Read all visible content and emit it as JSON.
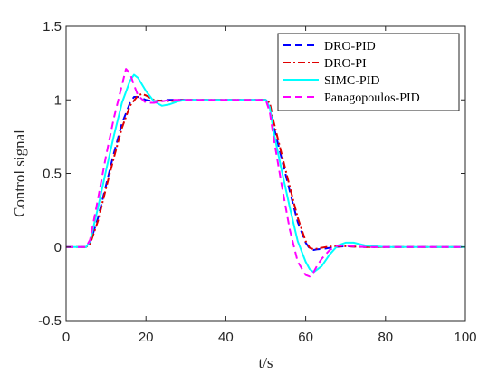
{
  "chart_data": {
    "type": "line",
    "title": "",
    "xlabel": "t/s",
    "ylabel": "Control signal",
    "xlim": [
      0,
      100
    ],
    "ylim": [
      -0.5,
      1.5
    ],
    "xticks": [
      0,
      20,
      40,
      60,
      80,
      100
    ],
    "yticks": [
      -0.5,
      0,
      0.5,
      1,
      1.5
    ],
    "xtick_labels": [
      "0",
      "20",
      "40",
      "60",
      "80",
      "100"
    ],
    "ytick_labels": [
      "-0.5",
      "0",
      "0.5",
      "1",
      "1.5"
    ],
    "grid": false,
    "legend_position": "top-right",
    "series": [
      {
        "name": "DRO-PID",
        "color": "#0000FF",
        "style": "dashed",
        "x": [
          0,
          5,
          6,
          8,
          10,
          12,
          14,
          16,
          17,
          18,
          20,
          22,
          25,
          30,
          40,
          50,
          51,
          52,
          54,
          56,
          58,
          60,
          61,
          62,
          63,
          65,
          67,
          70,
          75,
          80,
          100
        ],
        "y": [
          0,
          0,
          0.03,
          0.2,
          0.42,
          0.64,
          0.84,
          0.98,
          1.02,
          1.02,
          1.0,
          0.99,
          1.0,
          1.0,
          1.0,
          1.0,
          0.97,
          0.82,
          0.6,
          0.38,
          0.17,
          0.03,
          -0.01,
          -0.02,
          -0.015,
          -0.01,
          0.0,
          0.005,
          0.0,
          0.0,
          0.0
        ]
      },
      {
        "name": "DRO-PI",
        "color": "#E00000",
        "style": "dashdot",
        "x": [
          0,
          5,
          6,
          8,
          10,
          12,
          14,
          16,
          18,
          19,
          20,
          22,
          25,
          30,
          40,
          50,
          51,
          52,
          54,
          56,
          58,
          60,
          61,
          62,
          63,
          65,
          67,
          70,
          75,
          80,
          100
        ],
        "y": [
          0,
          0,
          0.02,
          0.18,
          0.4,
          0.61,
          0.81,
          0.96,
          1.03,
          1.04,
          1.03,
          1.0,
          0.99,
          1.0,
          1.0,
          1.0,
          0.98,
          0.85,
          0.63,
          0.41,
          0.2,
          0.04,
          -0.005,
          -0.015,
          -0.01,
          0.0,
          0.005,
          0.005,
          0.0,
          0.0,
          0.0
        ]
      },
      {
        "name": "SIMC-PID",
        "color": "#00FFFF",
        "style": "solid",
        "x": [
          0,
          5,
          6,
          8,
          10,
          12,
          14,
          16,
          17,
          18,
          20,
          22,
          24,
          26,
          28,
          30,
          35,
          40,
          50,
          51,
          52,
          54,
          56,
          58,
          60,
          61,
          62,
          64,
          66,
          68,
          70,
          72,
          75,
          80,
          100
        ],
        "y": [
          0,
          0,
          0.04,
          0.27,
          0.52,
          0.76,
          0.98,
          1.13,
          1.17,
          1.15,
          1.06,
          0.99,
          0.96,
          0.97,
          0.99,
          1.0,
          1.0,
          1.0,
          1.0,
          0.95,
          0.78,
          0.52,
          0.27,
          0.04,
          -0.1,
          -0.15,
          -0.17,
          -0.13,
          -0.05,
          0.01,
          0.03,
          0.03,
          0.01,
          0.0,
          0.0
        ]
      },
      {
        "name": "Panagopoulos-PID",
        "color": "#FF00FF",
        "style": "dashed",
        "x": [
          0,
          5,
          6,
          8,
          10,
          12,
          14,
          15,
          16,
          17,
          18,
          20,
          22,
          24,
          26,
          30,
          40,
          50,
          51,
          52,
          54,
          56,
          58,
          60,
          61,
          62,
          63,
          64,
          66,
          68,
          70,
          75,
          80,
          100
        ],
        "y": [
          0,
          0,
          0.05,
          0.33,
          0.62,
          0.88,
          1.1,
          1.21,
          1.18,
          1.1,
          1.03,
          0.98,
          0.98,
          0.99,
          1.0,
          1.0,
          1.0,
          1.0,
          0.92,
          0.74,
          0.42,
          0.12,
          -0.1,
          -0.19,
          -0.2,
          -0.17,
          -0.12,
          -0.08,
          -0.02,
          0.01,
          0.01,
          0.0,
          0.0,
          0.0
        ]
      }
    ]
  }
}
